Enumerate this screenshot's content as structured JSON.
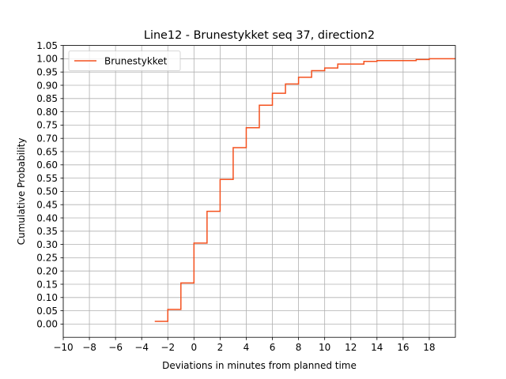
{
  "chart_data": {
    "type": "line",
    "step": "post",
    "title": "Line12 - Brunestykket seq 37, direction2",
    "xlabel": "Deviations in minutes from planned time",
    "ylabel": "Cumulative Probability",
    "xlim": [
      -10,
      20
    ],
    "ylim": [
      -0.05,
      1.05
    ],
    "xticks": [
      -10,
      -8,
      -6,
      -4,
      -2,
      0,
      2,
      4,
      6,
      8,
      10,
      12,
      14,
      16,
      18
    ],
    "xtick_labels": [
      "−10",
      "−8",
      "−6",
      "−4",
      "−2",
      "0",
      "2",
      "4",
      "6",
      "8",
      "10",
      "12",
      "14",
      "16",
      "18"
    ],
    "yticks": [
      0.0,
      0.05,
      0.1,
      0.15,
      0.2,
      0.25,
      0.3,
      0.35,
      0.4,
      0.45,
      0.5,
      0.55,
      0.6,
      0.65,
      0.7,
      0.75,
      0.8,
      0.85,
      0.9,
      0.95,
      1.0,
      1.05
    ],
    "ytick_labels": [
      "0.00",
      "0.05",
      "0.10",
      "0.15",
      "0.20",
      "0.25",
      "0.30",
      "0.35",
      "0.40",
      "0.45",
      "0.50",
      "0.55",
      "0.60",
      "0.65",
      "0.70",
      "0.75",
      "0.80",
      "0.85",
      "0.90",
      "0.95",
      "1.00",
      "1.05"
    ],
    "grid": true,
    "legend": "upper-left",
    "series": [
      {
        "name": "Brunestykket",
        "color": "#f4511e",
        "x": [
          -3,
          -2,
          -1,
          0,
          1,
          2,
          3,
          4,
          5,
          6,
          7,
          8,
          9,
          10,
          11,
          13,
          14,
          17,
          18,
          20
        ],
        "y": [
          0.01,
          0.055,
          0.155,
          0.305,
          0.425,
          0.545,
          0.665,
          0.74,
          0.825,
          0.87,
          0.905,
          0.93,
          0.955,
          0.965,
          0.98,
          0.99,
          0.993,
          0.997,
          1.0,
          1.0
        ]
      }
    ]
  }
}
